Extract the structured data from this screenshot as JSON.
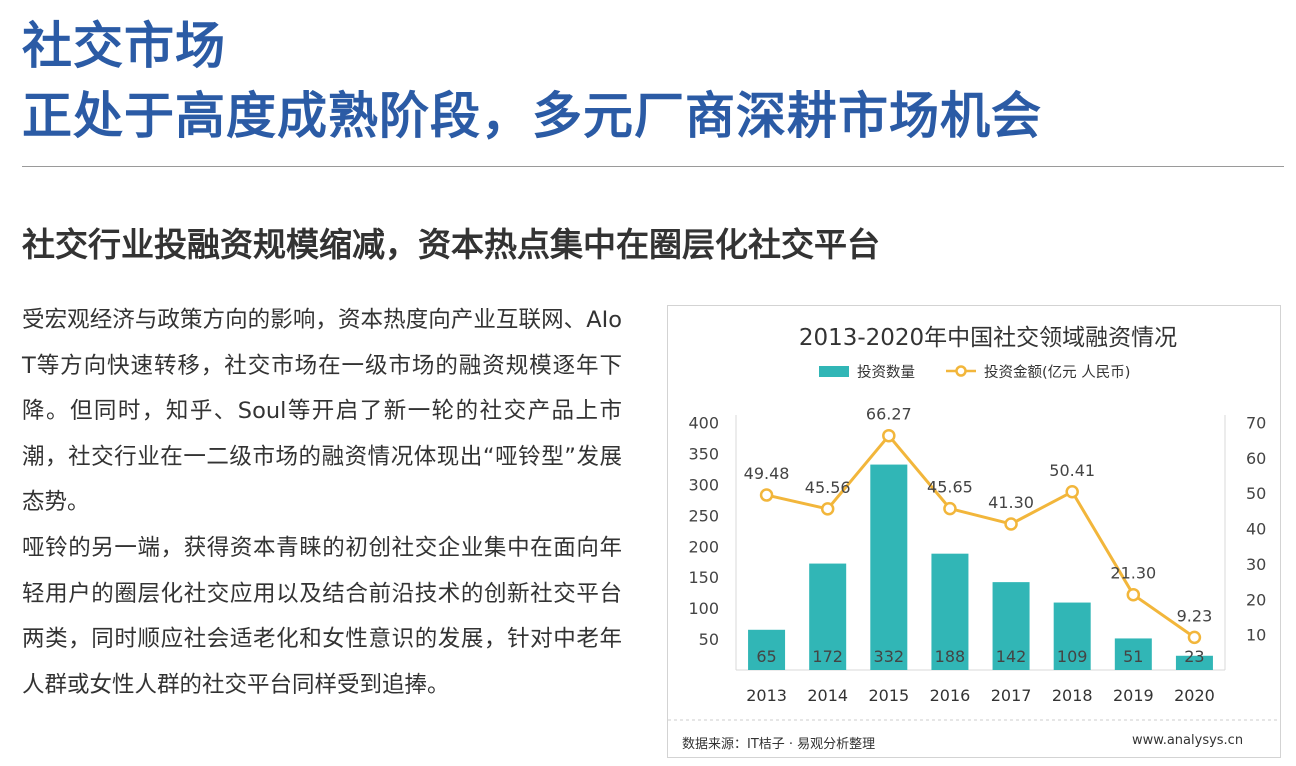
{
  "header": {
    "title_line1": "社交市场",
    "title_line2": "正处于高度成熟阶段，多元厂商深耕市场机会",
    "accent_color": "#2b5ba5"
  },
  "section": {
    "subtitle": "社交行业投融资规模缩减，资本热点集中在圈层化社交平台",
    "paragraph1": "受宏观经济与政策方向的影响，资本热度向产业互联网、AIoT等方向快速转移，社交市场在一级市场的融资规模逐年下降。但同时，知乎、Soul等开启了新一轮的社交产品上市潮，社交行业在一二级市场的融资情况体现出“哑铃型”发展态势。",
    "paragraph2": "哑铃的另一端，获得资本青睐的初创社交企业集中在面向年轻用户的圈层化社交应用以及结合前沿技术的创新社交平台两类，同时顺应社会适老化和女性意识的发展，针对中老年人群或女性人群的社交平台同样受到追捧。"
  },
  "chart_data": {
    "type": "bar",
    "title": "2013-2020年中国社交领域融资情况",
    "categories": [
      "2013",
      "2014",
      "2015",
      "2016",
      "2017",
      "2018",
      "2019",
      "2020"
    ],
    "series": [
      {
        "name": "投资数量",
        "type": "bar",
        "axis": "left",
        "color": "#31b6b6",
        "values": [
          65,
          172,
          332,
          188,
          142,
          109,
          51,
          23
        ],
        "labels": [
          "65",
          "172",
          "332",
          "188",
          "142",
          "109",
          "51",
          "23"
        ]
      },
      {
        "name": "投资金额(亿元 人民币)",
        "type": "line",
        "axis": "right",
        "color": "#f2b63b",
        "values": [
          49.48,
          45.56,
          66.27,
          45.65,
          41.3,
          50.41,
          21.3,
          9.23
        ],
        "labels": [
          "49.48",
          "45.56",
          "66.27",
          "45.65",
          "41.30",
          "50.41",
          "21.30",
          "9.23"
        ]
      }
    ],
    "y_left": {
      "min": 0,
      "max": 400,
      "ticks": [
        "50",
        "100",
        "150",
        "200",
        "250",
        "300",
        "350",
        "400"
      ]
    },
    "y_right": {
      "min": 0,
      "max": 70,
      "ticks": [
        "10",
        "20",
        "30",
        "40",
        "50",
        "60",
        "70"
      ]
    },
    "grid": false,
    "legend_position": "top-center"
  },
  "footer": {
    "source": "数据来源：IT桔子 · 易观分析整理",
    "website": "www.analysys.cn"
  }
}
